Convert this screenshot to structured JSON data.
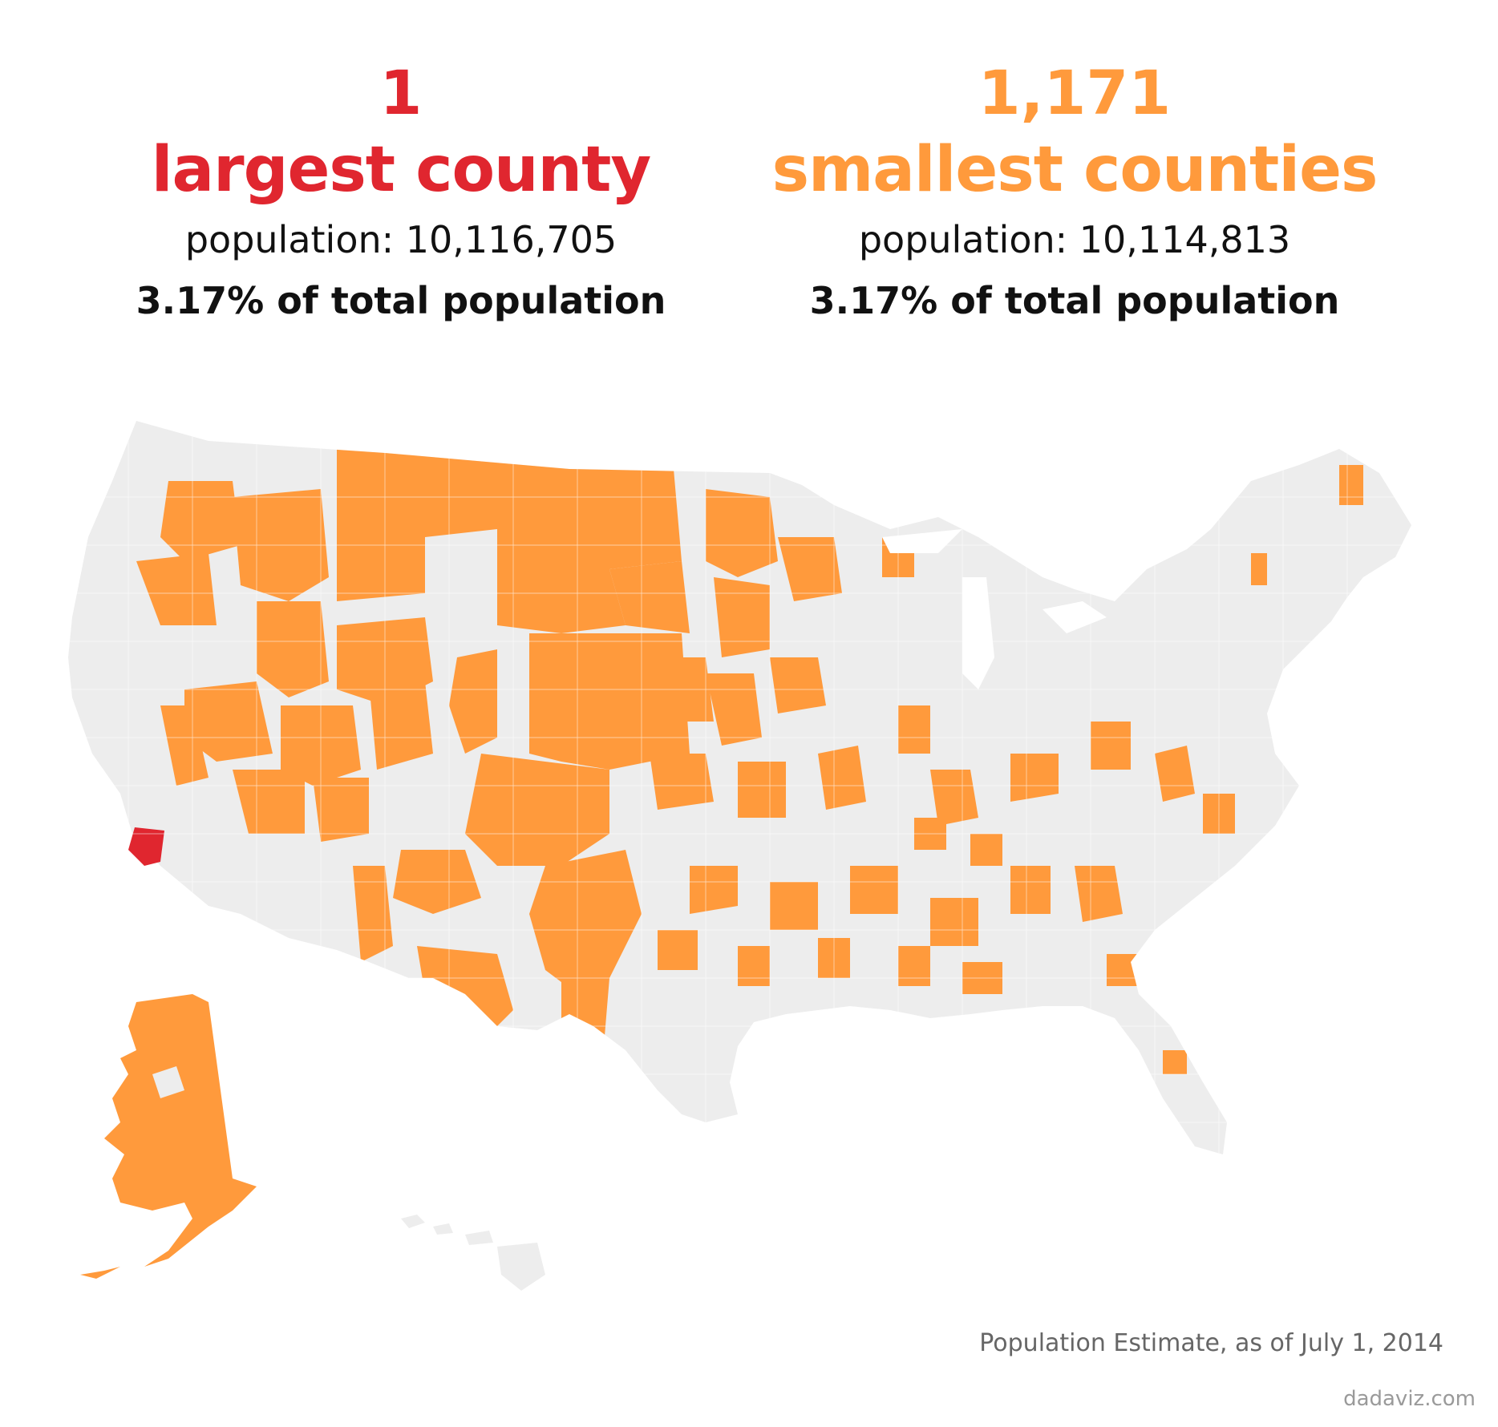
{
  "colors": {
    "largest": "#e0262f",
    "smallest": "#ff9a3c",
    "land": "#ededed",
    "border": "#ffffff"
  },
  "largest": {
    "count": "1",
    "label": "largest county",
    "population": "population: 10,116,705",
    "share": "3.17% of total population"
  },
  "smallest": {
    "count": "1,171",
    "label": "smallest counties",
    "population": "population: 10,114,813",
    "share": "3.17% of total population"
  },
  "footnote": "Population Estimate, as of July 1, 2014",
  "credit": "dadaviz.com"
}
